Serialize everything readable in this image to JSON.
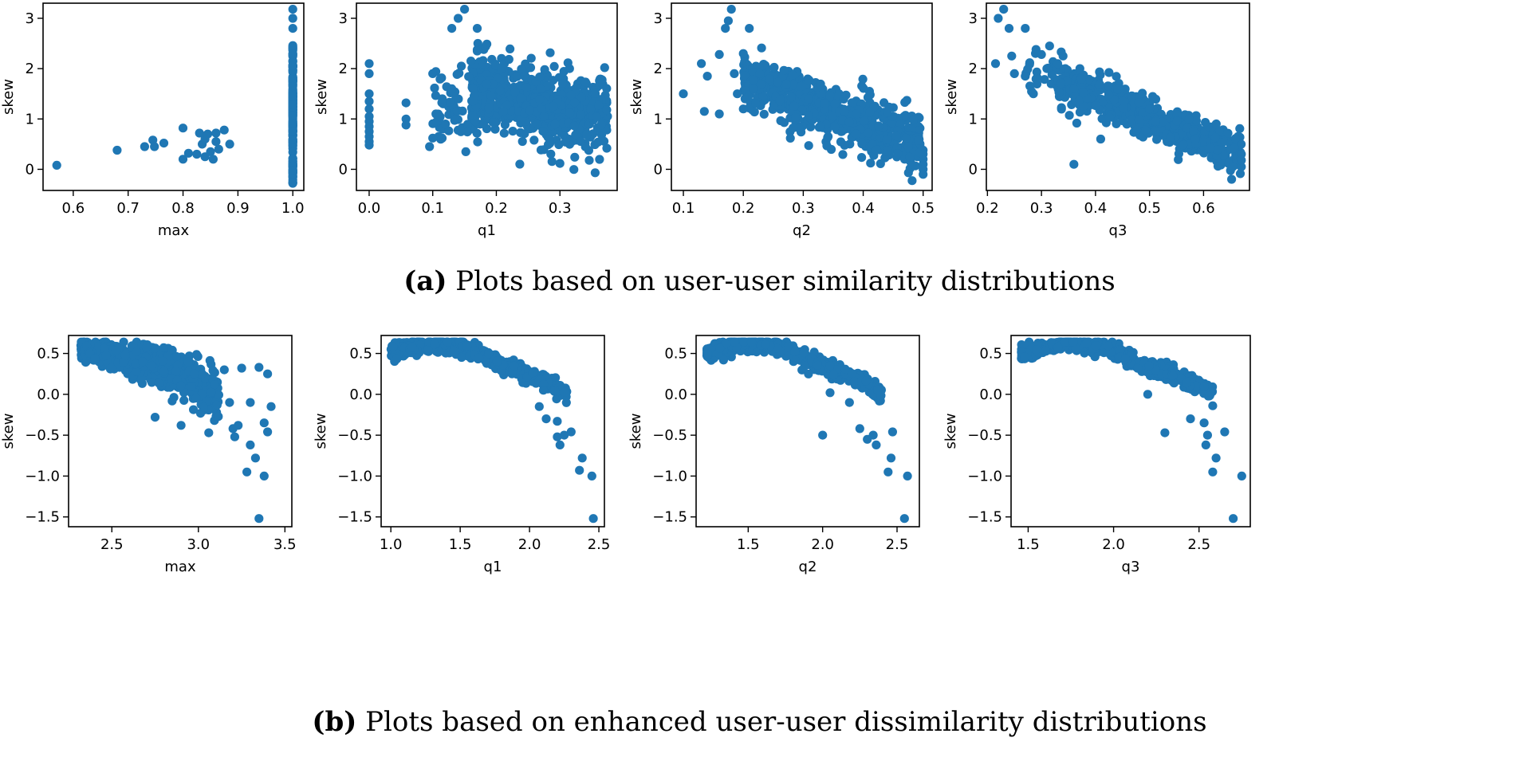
{
  "colors": {
    "marker": "#1f77b4",
    "axis": "#000000"
  },
  "captions": {
    "a": {
      "label": "(a)",
      "text": "Plots based on user-user similarity distributions"
    },
    "b": {
      "label": "(b)",
      "text": "Plots based on enhanced user-user dissimilarity distributions"
    }
  },
  "chart_data": [
    {
      "type": "scatter",
      "row": "a",
      "title": "",
      "xlabel": "max",
      "ylabel": "skew",
      "xlim": [
        0.545,
        1.02
      ],
      "ylim": [
        -0.42,
        3.3
      ],
      "xticks": [
        0.6,
        0.7,
        0.8,
        0.9,
        1.0
      ],
      "xtick_labels": [
        "0.6",
        "0.7",
        "0.8",
        "0.9",
        "1.0"
      ],
      "yticks": [
        0,
        1,
        2,
        3
      ],
      "ytick_labels": [
        "0",
        "1",
        "2",
        "3"
      ],
      "gen": {
        "kind": "max_a",
        "seed": 11
      },
      "points": [
        [
          0.57,
          0.08
        ],
        [
          0.68,
          0.38
        ],
        [
          0.73,
          0.45
        ],
        [
          0.745,
          0.58
        ],
        [
          0.748,
          0.45
        ],
        [
          0.765,
          0.52
        ],
        [
          0.8,
          0.82
        ],
        [
          0.8,
          0.2
        ],
        [
          0.81,
          0.32
        ],
        [
          0.825,
          0.3
        ],
        [
          0.83,
          0.72
        ],
        [
          0.835,
          0.5
        ],
        [
          0.84,
          0.6
        ],
        [
          0.84,
          0.25
        ],
        [
          0.845,
          0.7
        ],
        [
          0.85,
          0.35
        ],
        [
          0.855,
          0.2
        ],
        [
          0.86,
          0.55
        ],
        [
          0.86,
          0.72
        ],
        [
          0.875,
          0.78
        ],
        [
          0.885,
          0.5
        ],
        [
          0.865,
          0.4
        ]
      ]
    },
    {
      "type": "scatter",
      "row": "a",
      "title": "",
      "xlabel": "q1",
      "ylabel": "skew",
      "xlim": [
        -0.02,
        0.39
      ],
      "ylim": [
        -0.42,
        3.3
      ],
      "xticks": [
        0.0,
        0.1,
        0.2,
        0.3
      ],
      "xtick_labels": [
        "0.0",
        "0.1",
        "0.2",
        "0.3"
      ],
      "yticks": [
        0,
        1,
        2,
        3
      ],
      "ytick_labels": [
        "0",
        "1",
        "2",
        "3"
      ],
      "gen": {
        "kind": "q1_a",
        "seed": 23
      },
      "points": [
        [
          0.0,
          2.1
        ],
        [
          0.0,
          1.9
        ],
        [
          0.0,
          1.5
        ],
        [
          0.0,
          1.35
        ],
        [
          0.0,
          1.2
        ],
        [
          0.0,
          1.05
        ],
        [
          0.0,
          0.95
        ],
        [
          0.0,
          0.85
        ],
        [
          0.0,
          0.75
        ],
        [
          0.0,
          0.65
        ],
        [
          0.0,
          0.55
        ],
        [
          0.0,
          0.48
        ],
        [
          0.058,
          1.32
        ],
        [
          0.058,
          1.0
        ],
        [
          0.058,
          0.88
        ],
        [
          0.095,
          0.45
        ],
        [
          0.1,
          0.62
        ],
        [
          0.1,
          1.9
        ],
        [
          0.105,
          1.1
        ],
        [
          0.12,
          0.9
        ],
        [
          0.13,
          2.8
        ],
        [
          0.14,
          3.0
        ],
        [
          0.15,
          3.18
        ],
        [
          0.152,
          0.35
        ],
        [
          0.17,
          2.8
        ],
        [
          0.17,
          2.35
        ],
        [
          0.13,
          1.6
        ],
        [
          0.115,
          1.4
        ],
        [
          0.145,
          2.05
        ],
        [
          0.16,
          2.15
        ]
      ]
    },
    {
      "type": "scatter",
      "row": "a",
      "title": "",
      "xlabel": "q2",
      "ylabel": "skew",
      "xlim": [
        0.08,
        0.515
      ],
      "ylim": [
        -0.42,
        3.3
      ],
      "xticks": [
        0.1,
        0.2,
        0.3,
        0.4,
        0.5
      ],
      "xtick_labels": [
        "0.1",
        "0.2",
        "0.3",
        "0.4",
        "0.5"
      ],
      "yticks": [
        0,
        1,
        2,
        3
      ],
      "ytick_labels": [
        "0",
        "1",
        "2",
        "3"
      ],
      "gen": {
        "kind": "q2_a",
        "seed": 37
      },
      "points": [
        [
          0.1,
          1.5
        ],
        [
          0.13,
          2.1
        ],
        [
          0.135,
          1.15
        ],
        [
          0.14,
          1.85
        ],
        [
          0.16,
          1.1
        ],
        [
          0.16,
          2.28
        ],
        [
          0.17,
          2.8
        ],
        [
          0.175,
          2.95
        ],
        [
          0.18,
          3.18
        ],
        [
          0.185,
          1.9
        ],
        [
          0.2,
          2.3
        ],
        [
          0.21,
          2.8
        ],
        [
          0.19,
          1.5
        ],
        [
          0.2,
          1.2
        ],
        [
          0.5,
          0.38
        ],
        [
          0.5,
          0.2
        ],
        [
          0.5,
          0.1
        ],
        [
          0.5,
          0.0
        ],
        [
          0.5,
          -0.1
        ],
        [
          0.5,
          0.3
        ]
      ]
    },
    {
      "type": "scatter",
      "row": "a",
      "title": "",
      "xlabel": "q3",
      "ylabel": "skew",
      "xlim": [
        0.198,
        0.685
      ],
      "ylim": [
        -0.42,
        3.3
      ],
      "xticks": [
        0.2,
        0.3,
        0.4,
        0.5,
        0.6
      ],
      "xtick_labels": [
        "0.2",
        "0.3",
        "0.4",
        "0.5",
        "0.6"
      ],
      "yticks": [
        0,
        1,
        2,
        3
      ],
      "ytick_labels": [
        "0",
        "1",
        "2",
        "3"
      ],
      "gen": {
        "kind": "q3_a",
        "seed": 41
      },
      "points": [
        [
          0.215,
          2.1
        ],
        [
          0.22,
          3.0
        ],
        [
          0.23,
          3.18
        ],
        [
          0.24,
          2.8
        ],
        [
          0.245,
          2.25
        ],
        [
          0.25,
          1.9
        ],
        [
          0.27,
          2.8
        ],
        [
          0.27,
          1.85
        ],
        [
          0.285,
          1.5
        ],
        [
          0.29,
          2.38
        ],
        [
          0.3,
          2.28
        ],
        [
          0.31,
          2.0
        ],
        [
          0.315,
          2.45
        ],
        [
          0.33,
          2.1
        ],
        [
          0.34,
          2.25
        ],
        [
          0.36,
          0.1
        ],
        [
          0.36,
          1.6
        ],
        [
          0.5,
          1.2
        ],
        [
          0.67,
          0.3
        ],
        [
          0.67,
          0.05
        ],
        [
          0.67,
          0.18
        ]
      ]
    },
    {
      "type": "scatter",
      "row": "b",
      "title": "",
      "xlabel": "max",
      "ylabel": "skew",
      "xlim": [
        2.25,
        3.54
      ],
      "ylim": [
        -1.62,
        0.72
      ],
      "xticks": [
        2.5,
        3.0,
        3.5
      ],
      "xtick_labels": [
        "2.5",
        "3.0",
        "3.5"
      ],
      "yticks": [
        -1.5,
        -1.0,
        -0.5,
        0.0,
        0.5
      ],
      "ytick_labels": [
        "−1.5",
        "−1.0",
        "−0.5",
        "0.0",
        "0.5"
      ],
      "gen": {
        "kind": "max_b",
        "seed": 53
      },
      "points": [
        [
          3.35,
          -1.52
        ],
        [
          3.38,
          -1.0
        ],
        [
          3.33,
          -0.78
        ],
        [
          3.28,
          -0.95
        ],
        [
          3.4,
          -0.46
        ],
        [
          3.42,
          -0.15
        ],
        [
          3.38,
          -0.35
        ],
        [
          3.35,
          0.33
        ],
        [
          3.4,
          0.25
        ],
        [
          3.25,
          0.32
        ],
        [
          3.3,
          -0.62
        ],
        [
          3.2,
          -0.42
        ],
        [
          3.15,
          0.3
        ],
        [
          3.06,
          -0.47
        ],
        [
          2.75,
          -0.28
        ],
        [
          2.9,
          -0.38
        ],
        [
          3.21,
          -0.52
        ],
        [
          3.23,
          -0.38
        ],
        [
          3.18,
          -0.1
        ],
        [
          3.3,
          -0.1
        ]
      ]
    },
    {
      "type": "scatter",
      "row": "b",
      "title": "",
      "xlabel": "q1",
      "ylabel": "skew",
      "xlim": [
        0.93,
        2.54
      ],
      "ylim": [
        -1.62,
        0.72
      ],
      "xticks": [
        1.0,
        1.5,
        2.0,
        2.5
      ],
      "xtick_labels": [
        "1.0",
        "1.5",
        "2.0",
        "2.5"
      ],
      "yticks": [
        -1.5,
        -1.0,
        -0.5,
        0.0,
        0.5
      ],
      "ytick_labels": [
        "−1.5",
        "−1.0",
        "−0.5",
        "0.0",
        "0.5"
      ],
      "gen": {
        "kind": "arc_b",
        "seed": 61,
        "x0": 1.0,
        "x1": 2.3,
        "xend": 2.46
      },
      "points": [
        [
          2.46,
          -1.52
        ],
        [
          2.45,
          -1.0
        ],
        [
          2.38,
          -0.78
        ],
        [
          2.36,
          -0.93
        ],
        [
          2.3,
          -0.46
        ],
        [
          2.25,
          -0.5
        ],
        [
          2.2,
          -0.52
        ],
        [
          2.22,
          -0.62
        ],
        [
          2.2,
          -0.33
        ],
        [
          2.12,
          -0.3
        ],
        [
          2.1,
          0.05
        ],
        [
          2.07,
          -0.15
        ]
      ]
    },
    {
      "type": "scatter",
      "row": "b",
      "title": "",
      "xlabel": "q2",
      "ylabel": "skew",
      "xlim": [
        1.15,
        2.65
      ],
      "ylim": [
        -1.62,
        0.72
      ],
      "xticks": [
        1.5,
        2.0,
        2.5
      ],
      "xtick_labels": [
        "1.5",
        "2.0",
        "2.5"
      ],
      "yticks": [
        -1.5,
        -1.0,
        -0.5,
        0.0,
        0.5
      ],
      "ytick_labels": [
        "−1.5",
        "−1.0",
        "−0.5",
        "0.0",
        "0.5"
      ],
      "gen": {
        "kind": "arc_b",
        "seed": 67,
        "x0": 1.22,
        "x1": 2.36,
        "xend": 2.57
      },
      "points": [
        [
          2.55,
          -1.52
        ],
        [
          2.57,
          -1.0
        ],
        [
          2.44,
          -0.95
        ],
        [
          2.46,
          -0.78
        ],
        [
          2.47,
          -0.46
        ],
        [
          2.36,
          -0.62
        ],
        [
          2.34,
          -0.5
        ],
        [
          2.3,
          -0.55
        ],
        [
          2.25,
          -0.42
        ],
        [
          2.0,
          -0.5
        ],
        [
          2.18,
          -0.1
        ],
        [
          2.05,
          0.02
        ]
      ]
    },
    {
      "type": "scatter",
      "row": "b",
      "title": "",
      "xlabel": "q3",
      "ylabel": "skew",
      "xlim": [
        1.4,
        2.8
      ],
      "ylim": [
        -1.62,
        0.72
      ],
      "xticks": [
        1.5,
        2.0,
        2.5
      ],
      "xtick_labels": [
        "1.5",
        "2.0",
        "2.5"
      ],
      "yticks": [
        -1.5,
        -1.0,
        -0.5,
        0.0,
        0.5
      ],
      "ytick_labels": [
        "−1.5",
        "−1.0",
        "−0.5",
        "0.0",
        "0.5"
      ],
      "gen": {
        "kind": "arc_b",
        "seed": 71,
        "x0": 1.46,
        "x1": 2.55,
        "xend": 2.75
      },
      "points": [
        [
          2.7,
          -1.52
        ],
        [
          2.75,
          -1.0
        ],
        [
          2.6,
          -0.78
        ],
        [
          2.58,
          -0.95
        ],
        [
          2.65,
          -0.46
        ],
        [
          2.55,
          -0.5
        ],
        [
          2.54,
          -0.62
        ],
        [
          2.53,
          -0.35
        ],
        [
          2.45,
          -0.3
        ],
        [
          2.3,
          -0.47
        ],
        [
          2.56,
          -0.02
        ],
        [
          2.58,
          -0.14
        ],
        [
          2.2,
          0.0
        ]
      ]
    }
  ]
}
